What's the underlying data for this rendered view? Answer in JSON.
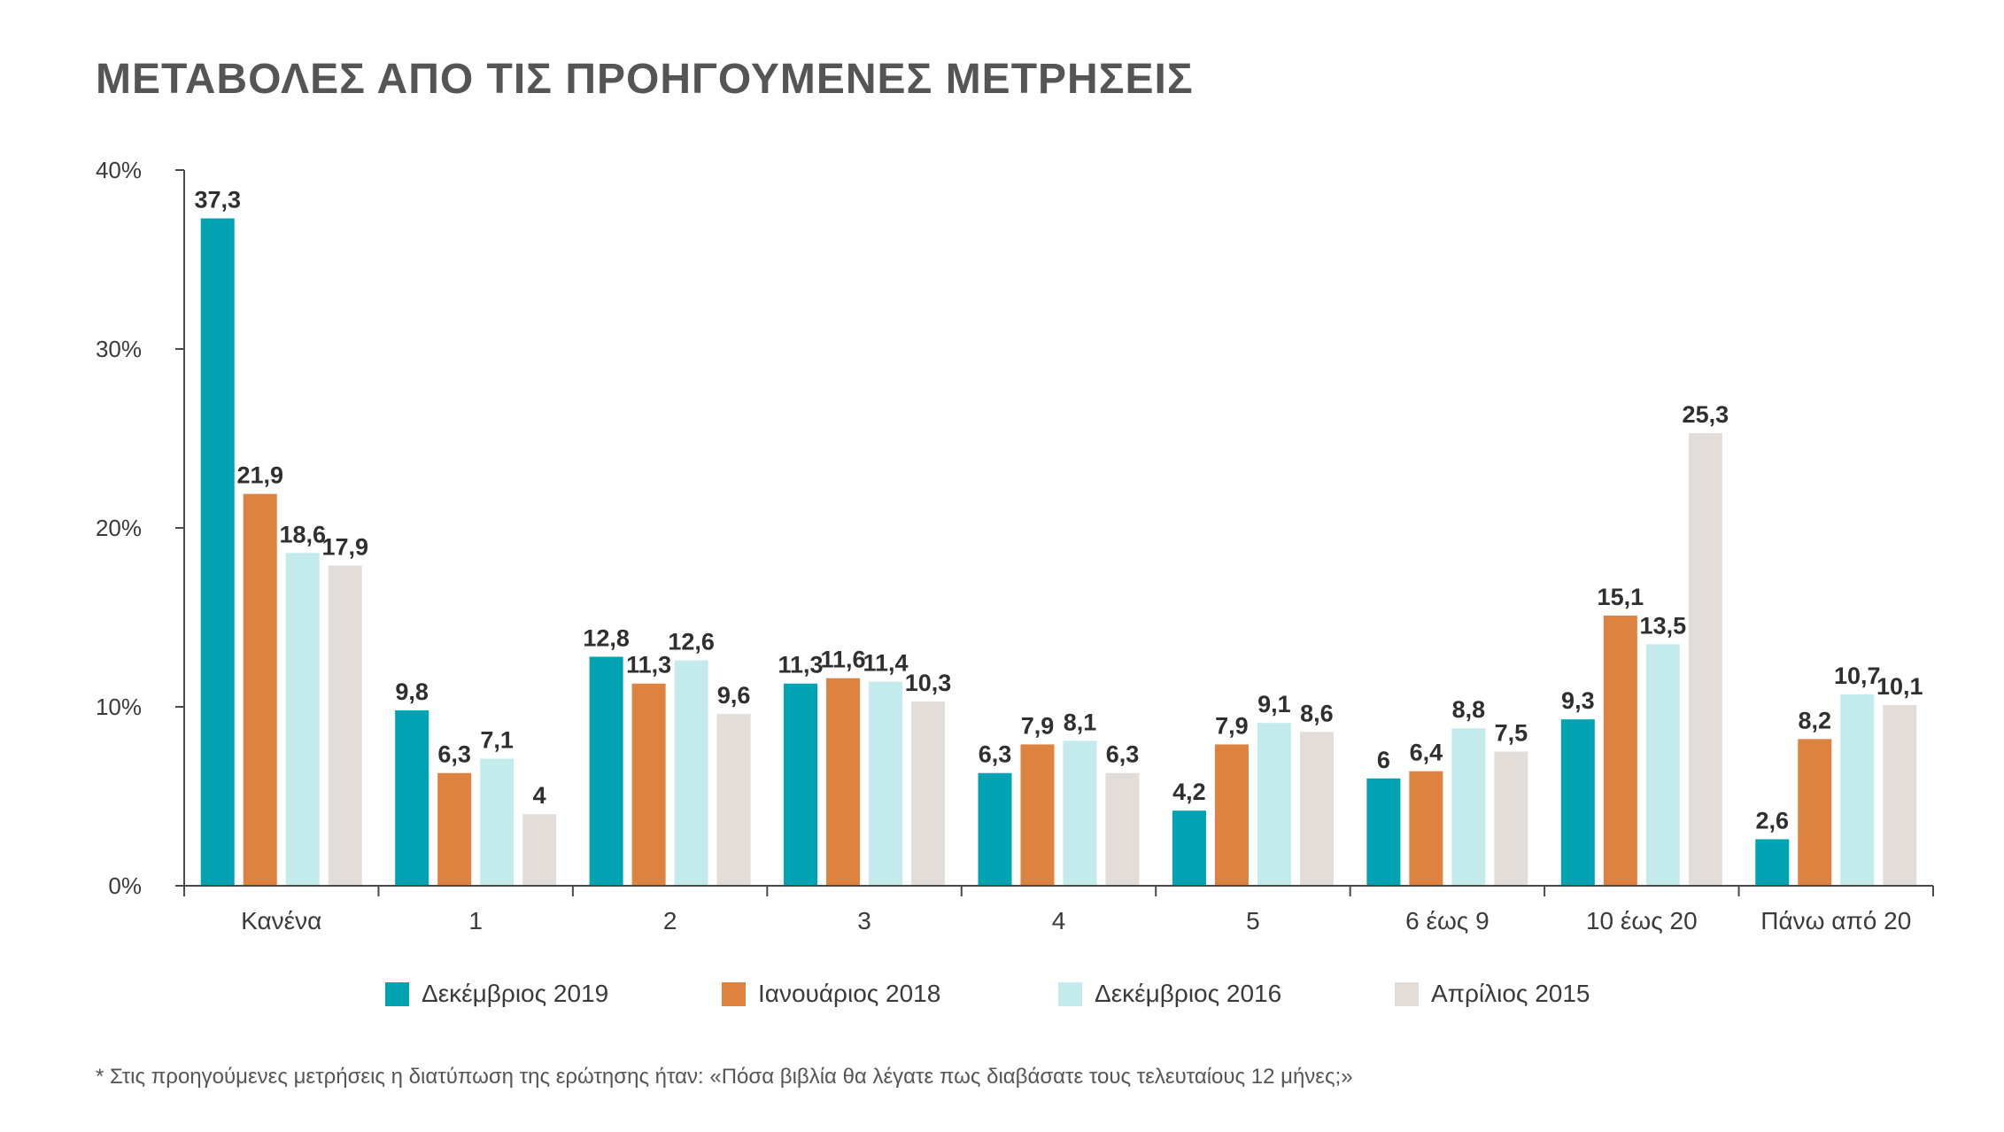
{
  "chart_data": {
    "type": "bar",
    "title": "ΜΕΤΑΒΟΛΕΣ ΑΠΟ ΤΙΣ ΠΡΟΗΓΟΥΜΕΝΕΣ ΜΕΤΡΗΣΕΙΣ",
    "xlabel": "",
    "ylabel": "",
    "ylim": [
      0,
      40
    ],
    "yticks": [
      0,
      10,
      20,
      30,
      40
    ],
    "ytick_labels": [
      "0%",
      "10%",
      "20%",
      "30%",
      "40%"
    ],
    "grid": false,
    "legend_position": "bottom",
    "categories": [
      "Κανένα",
      "1",
      "2",
      "3",
      "4",
      "5",
      "6 έως 9",
      "10 έως 20",
      "Πάνω από 20"
    ],
    "series": [
      {
        "name": "Δεκέμβριος 2019",
        "color": "#00a3b1",
        "values": [
          37.3,
          9.8,
          12.8,
          11.3,
          6.3,
          4.2,
          6,
          9.3,
          2.6
        ],
        "labels": [
          "37,3",
          "9,8",
          "12,8",
          "11,3",
          "6,3",
          "4,2",
          "6",
          "9,3",
          "2,6"
        ]
      },
      {
        "name": "Ιανουάριος 2018",
        "color": "#dd823f",
        "values": [
          21.9,
          6.3,
          11.3,
          11.6,
          7.9,
          7.9,
          6.4,
          15.1,
          8.2
        ],
        "labels": [
          "21,9",
          "6,3",
          "11,3",
          "11,6",
          "7,9",
          "7,9",
          "6,4",
          "15,1",
          "8,2"
        ]
      },
      {
        "name": "Δεκέμβριος 2016",
        "color": "#c4ebec",
        "values": [
          18.6,
          7.1,
          12.6,
          11.4,
          8.1,
          9.1,
          8.8,
          13.5,
          10.7
        ],
        "labels": [
          "18,6",
          "7,1",
          "12,6",
          "11,4",
          "8,1",
          "9,1",
          "8,8",
          "13,5",
          "10,7"
        ]
      },
      {
        "name": "Απρίλιος 2015",
        "color": "#e2ddd9",
        "values": [
          17.9,
          4,
          9.6,
          10.3,
          6.3,
          8.6,
          7.5,
          25.3,
          10.1
        ],
        "labels": [
          "17,9",
          "4",
          "9,6",
          "10,3",
          "6,3",
          "8,6",
          "7,5",
          "25,3",
          "10,1"
        ]
      }
    ],
    "footnote": "* Στις προηγούμενες μετρήσεις η διατύπωση της ερώτησης ήταν: «Πόσα βιβλία θα λέγατε πως διαβάσατε τους τελευταίους 12 μήνες;»"
  }
}
